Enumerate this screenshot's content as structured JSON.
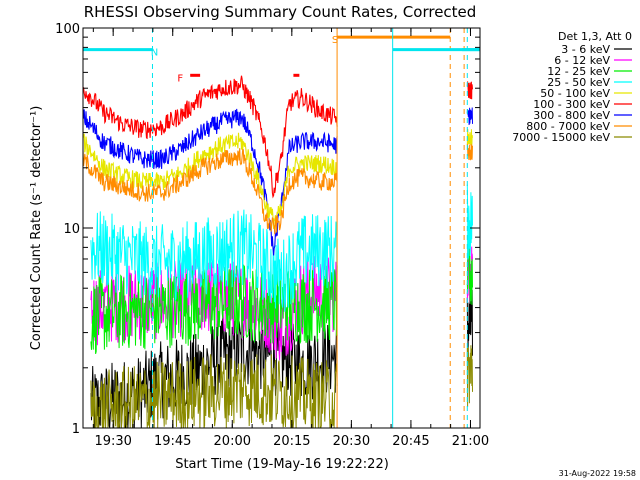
{
  "chart_data": {
    "type": "line",
    "title": "RHESSI Observing Summary Count Rates, Corrected",
    "xlabel": "Start Time (19-May-16 19:22:22)",
    "ylabel": "Corrected Count Rate (s⁻¹ detector⁻¹)",
    "y_scale": "log",
    "ylim": [
      1,
      100
    ],
    "y_tick_labels": [
      "1",
      "10",
      "100"
    ],
    "x_unit": "minutes after 19:22:22",
    "xlim": [
      0,
      100
    ],
    "x_ticks": [
      {
        "label": "19:30",
        "value": 7.6
      },
      {
        "label": "19:45",
        "value": 22.6
      },
      {
        "label": "20:00",
        "value": 37.6
      },
      {
        "label": "20:15",
        "value": 52.6
      },
      {
        "label": "20:30",
        "value": 67.6
      },
      {
        "label": "20:45",
        "value": 82.6
      },
      {
        "label": "21:00",
        "value": 97.6
      }
    ],
    "legend": {
      "placement": "right",
      "header": "Det 1,3, Att 0",
      "entries": [
        {
          "label": "3 - 6 keV",
          "color": "#000000"
        },
        {
          "label": "6 - 12 keV",
          "color": "#ff00ff"
        },
        {
          "label": "12 - 25 keV",
          "color": "#00ee00"
        },
        {
          "label": "25 - 50 keV",
          "color": "#00ffff"
        },
        {
          "label": "50 - 100 keV",
          "color": "#e6e600"
        },
        {
          "label": "100 - 300 keV",
          "color": "#ff0000"
        },
        {
          "label": "300 - 800 keV",
          "color": "#0000ff"
        },
        {
          "label": "800 - 7000 keV",
          "color": "#ff8c00"
        },
        {
          "label": "7000 - 15000 keV",
          "color": "#8b8b00"
        }
      ]
    },
    "series": [
      {
        "color": "#000000",
        "x": [
          2,
          15,
          18,
          28,
          33,
          40,
          47,
          55,
          60,
          64
        ],
        "y": [
          1.3,
          1.5,
          1.7,
          1.9,
          2.2,
          2.5,
          2.3,
          2.1,
          2.2,
          2.3
        ]
      },
      {
        "color": "#ff00ff",
        "x": [
          2,
          10,
          20,
          30,
          40,
          45,
          50,
          55,
          60,
          64
        ],
        "y": [
          4.0,
          4.2,
          4.3,
          4.6,
          4.4,
          4.0,
          3.2,
          4.5,
          4.8,
          4.6
        ]
      },
      {
        "color": "#00ee00",
        "x": [
          2,
          10,
          20,
          30,
          40,
          45,
          50,
          55,
          60,
          64
        ],
        "y": [
          3.6,
          3.8,
          3.9,
          4.1,
          4.3,
          4.1,
          4.2,
          4.1,
          4.2,
          4.2
        ]
      },
      {
        "color": "#00ffff",
        "x": [
          2,
          10,
          18,
          25,
          30,
          35,
          40,
          45,
          50,
          55,
          60,
          64
        ],
        "y": [
          8.0,
          7.3,
          6.6,
          6.9,
          7.2,
          7.6,
          8.1,
          6.8,
          5.6,
          7.5,
          7.8,
          7.6
        ]
      },
      {
        "color": "#ff0000",
        "x": [
          0,
          5,
          10,
          15,
          20,
          25,
          30,
          35,
          40,
          43,
          46,
          48,
          50,
          52,
          55,
          60,
          64
        ],
        "y": [
          50,
          38,
          33,
          31,
          32,
          37,
          45,
          50,
          52,
          40,
          26,
          15,
          22,
          42,
          45,
          38,
          35
        ]
      },
      {
        "color": "#0000ff",
        "x": [
          0,
          5,
          10,
          15,
          20,
          25,
          30,
          35,
          40,
          43,
          46,
          48,
          50,
          52,
          55,
          60,
          64
        ],
        "y": [
          36,
          27,
          24,
          22,
          22,
          25,
          30,
          34,
          36,
          25,
          14,
          7.5,
          13,
          25,
          27,
          27,
          26
        ]
      },
      {
        "color": "#e6e600",
        "x": [
          0,
          5,
          10,
          15,
          20,
          25,
          30,
          35,
          40,
          43,
          46,
          48,
          50,
          52,
          55,
          60,
          64
        ],
        "y": [
          27,
          20,
          18,
          17,
          17,
          19,
          23,
          26,
          27,
          20,
          13,
          11,
          12,
          20,
          21,
          21,
          20
        ]
      },
      {
        "color": "#ff8c00",
        "x": [
          0,
          5,
          10,
          15,
          20,
          25,
          30,
          35,
          40,
          43,
          46,
          48,
          50,
          52,
          55,
          60,
          64
        ],
        "y": [
          22,
          17,
          16,
          15,
          15,
          17,
          20,
          22,
          23,
          17,
          11,
          10,
          11,
          17,
          18,
          17,
          17
        ]
      },
      {
        "color": "#8b8b00",
        "x": [
          2,
          10,
          20,
          30,
          40,
          50,
          60,
          64
        ],
        "y": [
          1.2,
          1.3,
          1.4,
          1.5,
          1.6,
          1.5,
          1.4,
          1.4
        ]
      }
    ],
    "annotations": [
      {
        "text": "N",
        "color": "#00e5ee",
        "x": 18,
        "segments": [
          [
            0,
            17.5
          ],
          [
            95.5,
            100
          ]
        ],
        "y_level": 78,
        "dashed_x": [
          17.5,
          96.8
        ]
      },
      {
        "text": "F",
        "color": "#ff0000",
        "x": 24.5,
        "segments": [
          [
            27,
            29.5
          ],
          [
            53,
            54.5
          ]
        ],
        "y_level": 58
      },
      {
        "text": "S",
        "color": "#ff8c00",
        "x": 63.5,
        "segments": [
          [
            64,
            92.5
          ]
        ],
        "y_level": 90,
        "solid_x": [
          64
        ],
        "dashed_x": [
          92.5,
          96
        ]
      },
      {
        "text": "",
        "color": "#00e5ee",
        "segments": [
          [
            78,
            100
          ]
        ],
        "y_level": 78,
        "solid_x": [
          78
        ]
      }
    ]
  },
  "footer": {
    "timestamp": "31-Aug-2022 19:58"
  }
}
